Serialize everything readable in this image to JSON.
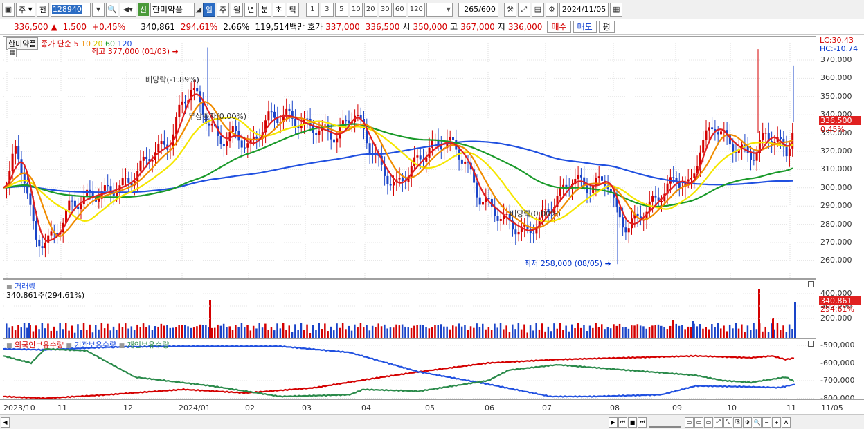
{
  "toolbar": {
    "period_type": "주",
    "prev_label": "전",
    "stock_code": "128940",
    "new_badge": "신",
    "stock_name": "한미약품",
    "period_buttons": [
      "일",
      "주",
      "월",
      "년",
      "분",
      "초",
      "틱"
    ],
    "selected_period": "일",
    "interval_buttons": [
      "1",
      "3",
      "5",
      "10",
      "20",
      "30",
      "60",
      "120"
    ],
    "count_display": "265/600",
    "date": "2024/11/05"
  },
  "quote": {
    "price": "336,500",
    "change": "1,500",
    "change_pct": "+0.45%",
    "volume": "340,861",
    "volume_ratio": "294.61%",
    "turnover": "2.66%",
    "amount": "119,514백만",
    "bid_label": "호가",
    "bid": "337,000",
    "ask": "336,500",
    "open_label": "시",
    "open": "350,000",
    "high_label": "고",
    "high": "367,000",
    "low_label": "저",
    "low": "336,000",
    "buy_label": "매수",
    "sell_label": "매도",
    "eval_label": "평"
  },
  "price_pane": {
    "stock_label": "한미약품",
    "legend_prefix": "종가 단순",
    "ma_periods": [
      "5",
      "10",
      "20",
      "60",
      "120"
    ],
    "ma_colors": [
      "#e02020",
      "#f08c00",
      "#f5e600",
      "#1a9a2a",
      "#2050e0"
    ],
    "lc": "LC:30.43",
    "hc": "HC:-10.74",
    "yticks": [
      "370,000",
      "360,000",
      "350,000",
      "340,000",
      "330,000",
      "320,000",
      "310,000",
      "300,000",
      "290,000",
      "280,000",
      "270,000",
      "260,000"
    ],
    "current_tag": "336,500",
    "current_pct": "0.45%",
    "annotations": {
      "high": "최고 377,000 (01/03)",
      "low": "최저 258,000 (08/05)",
      "dividend1": "배당락(-1.89%)",
      "bonus": "무상증자(0.00%)",
      "dividend2": "배당락(0.00%)"
    }
  },
  "volume_pane": {
    "title": "거래량",
    "value": "340,861주(294.61%)",
    "yticks": [
      "400,000",
      "300,000",
      "200,000"
    ],
    "current_tag": "340,861",
    "current_pct": "294.61%"
  },
  "holdings_pane": {
    "legend": [
      "외국인보유수량",
      "기관보유수량",
      "개인보유수량"
    ],
    "legend_colors": [
      "#d40000",
      "#2050e0",
      "#2a8a4a"
    ],
    "yticks": [
      "-500,000",
      "-600,000",
      "-700,000",
      "-800,000"
    ]
  },
  "xaxis": {
    "labels": [
      "2023/10",
      "11",
      "12",
      "2024/01",
      "02",
      "03",
      "04",
      "05",
      "06",
      "07",
      "08",
      "09",
      "10",
      "11",
      "11/05"
    ]
  }
}
